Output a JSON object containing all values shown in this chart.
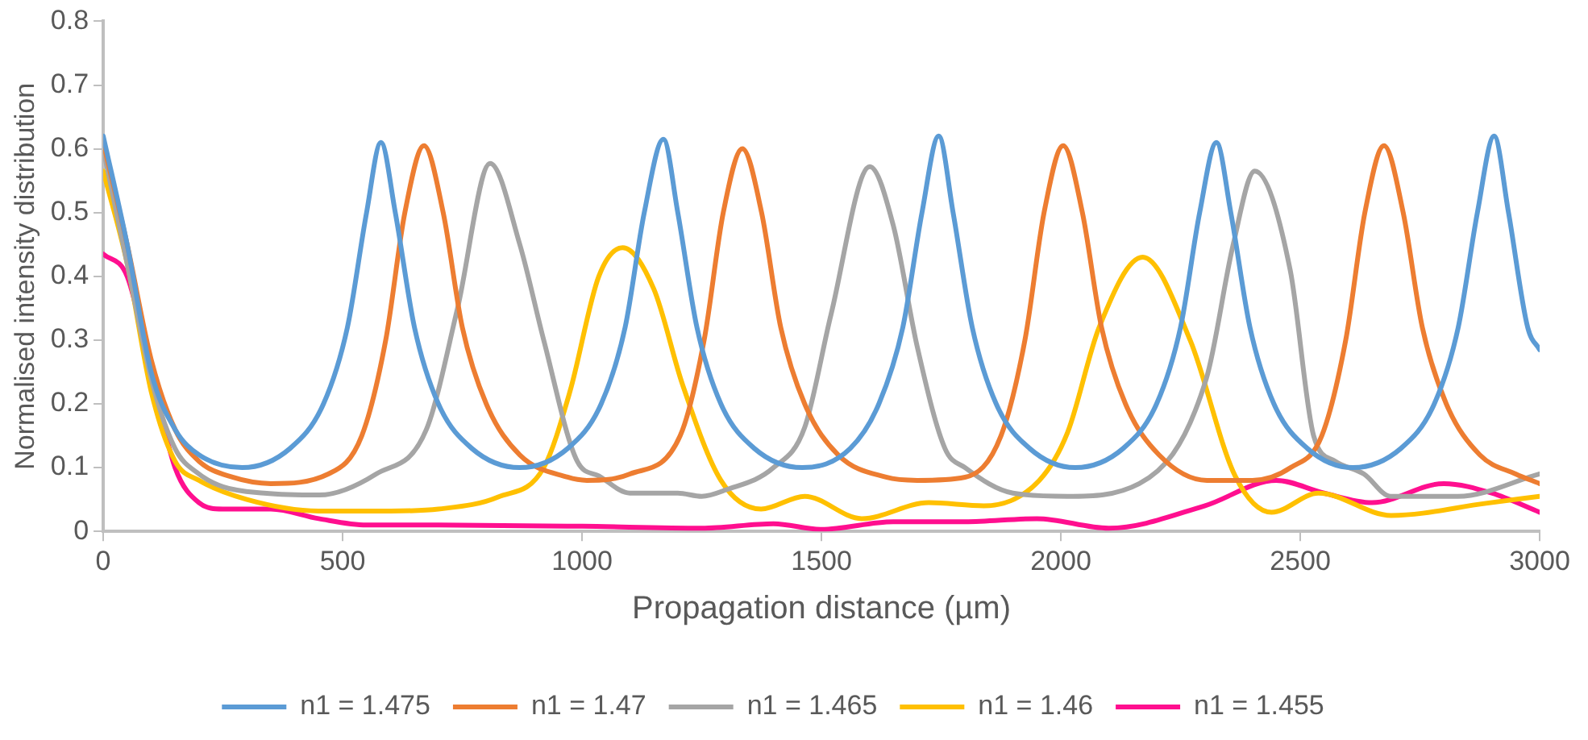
{
  "chart_data": {
    "type": "line",
    "xlabel": "Propagation distance (µm)",
    "ylabel": "Normalised intensity distribution",
    "xlim": [
      0,
      3000
    ],
    "xticks": [
      0,
      500,
      1000,
      1500,
      2000,
      2500,
      3000
    ],
    "ylim": [
      0,
      0.8
    ],
    "yticks": [
      0,
      0.1,
      0.2,
      0.3,
      0.4,
      0.5,
      0.6,
      0.7,
      0.8
    ],
    "grid": false,
    "legend": "bottom",
    "marker": "none",
    "line_style": "solid",
    "series": [
      {
        "name": "n1 = 1.475",
        "color": "#5b9bd5",
        "x": [
          0,
          50,
          100,
          150,
          200,
          290,
          390,
          460,
          510,
          550,
          580,
          610,
          650,
          700,
          770,
          870,
          970,
          1040,
          1090,
          1130,
          1170,
          1200,
          1240,
          1290,
          1360,
          1460,
          1560,
          1620,
          1670,
          1710,
          1745,
          1775,
          1815,
          1865,
          1935,
          2030,
          2130,
          2200,
          2250,
          2290,
          2325,
          2355,
          2395,
          2445,
          2515,
          2610,
          2710,
          2780,
          2830,
          2870,
          2905,
          2935,
          2975,
          3000
        ],
        "values": [
          0.62,
          0.45,
          0.25,
          0.16,
          0.12,
          0.1,
          0.13,
          0.2,
          0.32,
          0.5,
          0.61,
          0.5,
          0.32,
          0.2,
          0.13,
          0.1,
          0.13,
          0.2,
          0.32,
          0.5,
          0.615,
          0.5,
          0.32,
          0.2,
          0.13,
          0.1,
          0.13,
          0.2,
          0.32,
          0.5,
          0.62,
          0.5,
          0.32,
          0.2,
          0.13,
          0.1,
          0.13,
          0.2,
          0.32,
          0.5,
          0.61,
          0.5,
          0.32,
          0.2,
          0.13,
          0.1,
          0.13,
          0.2,
          0.32,
          0.5,
          0.62,
          0.5,
          0.32,
          0.285
        ]
      },
      {
        "name": "n1 = 1.47",
        "color": "#ed7d31",
        "x": [
          0,
          50,
          100,
          150,
          200,
          270,
          350,
          470,
          540,
          590,
          630,
          670,
          710,
          750,
          800,
          870,
          970,
          1010,
          1100,
          1205,
          1255,
          1295,
          1335,
          1375,
          1415,
          1465,
          1535,
          1635,
          1700,
          1800,
          1875,
          1925,
          1965,
          2005,
          2045,
          2085,
          2135,
          2205,
          2305,
          2400,
          2480,
          2545,
          2595,
          2635,
          2675,
          2715,
          2755,
          2805,
          2875,
          2950,
          3000
        ],
        "values": [
          0.61,
          0.45,
          0.27,
          0.16,
          0.11,
          0.085,
          0.075,
          0.09,
          0.15,
          0.3,
          0.5,
          0.605,
          0.5,
          0.32,
          0.2,
          0.12,
          0.085,
          0.08,
          0.09,
          0.15,
          0.3,
          0.5,
          0.6,
          0.5,
          0.32,
          0.2,
          0.12,
          0.085,
          0.08,
          0.085,
          0.15,
          0.3,
          0.5,
          0.605,
          0.5,
          0.32,
          0.2,
          0.12,
          0.08,
          0.08,
          0.1,
          0.15,
          0.3,
          0.5,
          0.605,
          0.5,
          0.32,
          0.2,
          0.12,
          0.09,
          0.075
        ]
      },
      {
        "name": "n1 = 1.465",
        "color": "#a5a5a5",
        "x": [
          0,
          50,
          100,
          150,
          200,
          250,
          336,
          451,
          570,
          675,
          740,
          808,
          870,
          920,
          990,
          1035,
          1100,
          1200,
          1250,
          1300,
          1400,
          1465,
          1520,
          1601,
          1650,
          1700,
          1758,
          1800,
          1900,
          2014,
          2164,
          2304,
          2360,
          2405,
          2479,
          2528,
          2573,
          2633,
          2689,
          2829,
          3000
        ],
        "values": [
          0.6,
          0.42,
          0.24,
          0.13,
          0.09,
          0.07,
          0.06,
          0.057,
          0.09,
          0.16,
          0.35,
          0.577,
          0.45,
          0.3,
          0.11,
          0.087,
          0.06,
          0.06,
          0.055,
          0.065,
          0.1,
          0.163,
          0.34,
          0.572,
          0.48,
          0.29,
          0.13,
          0.1,
          0.06,
          0.055,
          0.075,
          0.24,
          0.45,
          0.565,
          0.41,
          0.15,
          0.11,
          0.09,
          0.055,
          0.055,
          0.09
        ]
      },
      {
        "name": "n1 = 1.46",
        "color": "#ffc000",
        "x": [
          0,
          50,
          100,
          150,
          200,
          300,
          450,
          600,
          700,
          825,
          920,
          975,
          1035,
          1085,
          1150,
          1210,
          1290,
          1374,
          1465,
          1584,
          1724,
          1839,
          1955,
          2014,
          2080,
          2171,
          2270,
          2364,
          2440,
          2538,
          2690,
          2888,
          3000
        ],
        "values": [
          0.565,
          0.42,
          0.22,
          0.11,
          0.08,
          0.05,
          0.032,
          0.032,
          0.035,
          0.054,
          0.1,
          0.22,
          0.4,
          0.445,
          0.38,
          0.23,
          0.08,
          0.035,
          0.055,
          0.02,
          0.045,
          0.04,
          0.08,
          0.155,
          0.32,
          0.43,
          0.3,
          0.087,
          0.03,
          0.06,
          0.025,
          0.044,
          0.055
        ]
      },
      {
        "name": "n1 = 1.455",
        "color": "#ff0f8f",
        "x": [
          0,
          50,
          100,
          150,
          200,
          250,
          350,
          450,
          550,
          700,
          1000,
          1250,
          1400,
          1500,
          1650,
          1800,
          1950,
          2100,
          2300,
          2450,
          2550,
          2650,
          2800,
          2900,
          3000
        ],
        "values": [
          0.435,
          0.4,
          0.25,
          0.1,
          0.045,
          0.035,
          0.035,
          0.02,
          0.01,
          0.01,
          0.008,
          0.005,
          0.012,
          0.003,
          0.015,
          0.015,
          0.02,
          0.005,
          0.04,
          0.08,
          0.06,
          0.045,
          0.075,
          0.06,
          0.03
        ]
      }
    ]
  }
}
